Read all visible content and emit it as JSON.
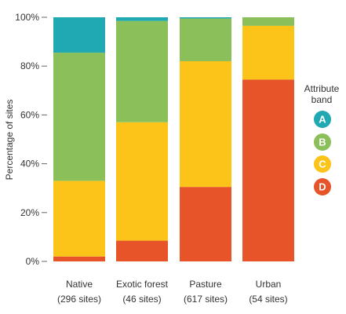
{
  "chart_data": {
    "type": "bar",
    "stacked": true,
    "ylabel": "Percentage of sites",
    "ylim": [
      0,
      100
    ],
    "yticks": [
      {
        "value": 0,
        "label": "0%"
      },
      {
        "value": 20,
        "label": "20%"
      },
      {
        "value": 40,
        "label": "40%"
      },
      {
        "value": 60,
        "label": "60%"
      },
      {
        "value": 80,
        "label": "80%"
      },
      {
        "value": 100,
        "label": "100%"
      }
    ],
    "categories": [
      {
        "name": "Native",
        "sites": "(296 sites)"
      },
      {
        "name": "Exotic forest",
        "sites": "(46 sites)"
      },
      {
        "name": "Pasture",
        "sites": "(617 sites)"
      },
      {
        "name": "Urban",
        "sites": "(54 sites)"
      }
    ],
    "series": [
      {
        "name": "D",
        "color": "#e8542a",
        "values": [
          2,
          8.5,
          30.5,
          74.5
        ]
      },
      {
        "name": "C",
        "color": "#fcc419",
        "values": [
          31,
          48.5,
          51.5,
          22
        ]
      },
      {
        "name": "B",
        "color": "#8bbf5a",
        "values": [
          52.5,
          41.5,
          17.5,
          3.5
        ]
      },
      {
        "name": "A",
        "color": "#21a9b3",
        "values": [
          14.5,
          1.5,
          0.5,
          0
        ]
      }
    ],
    "legend": {
      "title_line1": "Attribute",
      "title_line2": "band",
      "placement": "right",
      "order": [
        "A",
        "B",
        "C",
        "D"
      ]
    },
    "grid": false
  }
}
